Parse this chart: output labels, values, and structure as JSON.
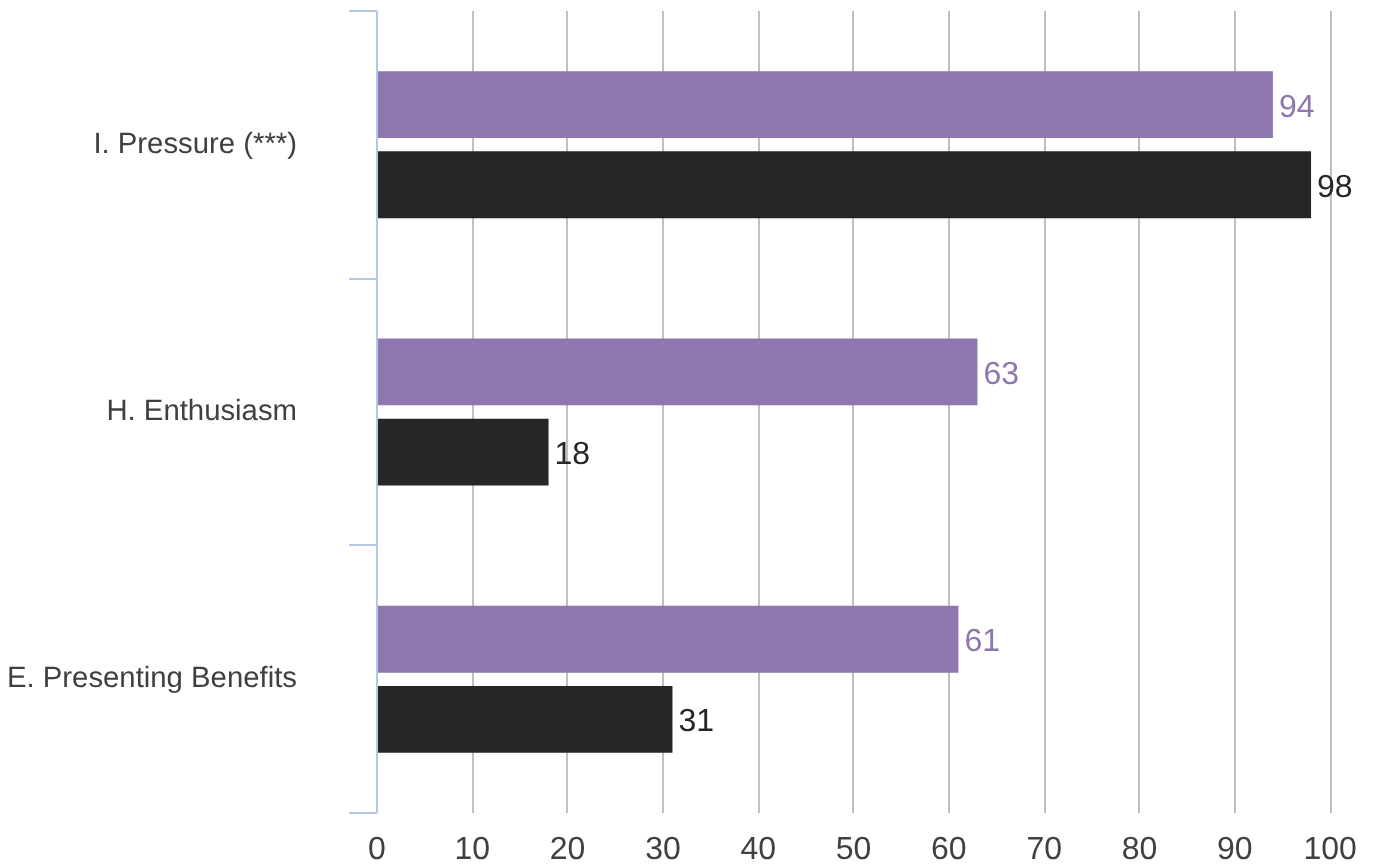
{
  "chart_data": {
    "type": "bar",
    "orientation": "horizontal",
    "categories": [
      "I. Pressure (***)",
      "H. Enthusiasm",
      "E. Presenting Benefits"
    ],
    "series": [
      {
        "color": "#8e76ae",
        "values": [
          94,
          63,
          61
        ]
      },
      {
        "color": "#262626",
        "values": [
          98,
          18,
          31
        ]
      }
    ],
    "xlim": [
      0,
      100
    ],
    "xticks": [
      0,
      10,
      20,
      30,
      40,
      50,
      60,
      70,
      80,
      90,
      100
    ],
    "grid": "x",
    "data_labels": true
  }
}
